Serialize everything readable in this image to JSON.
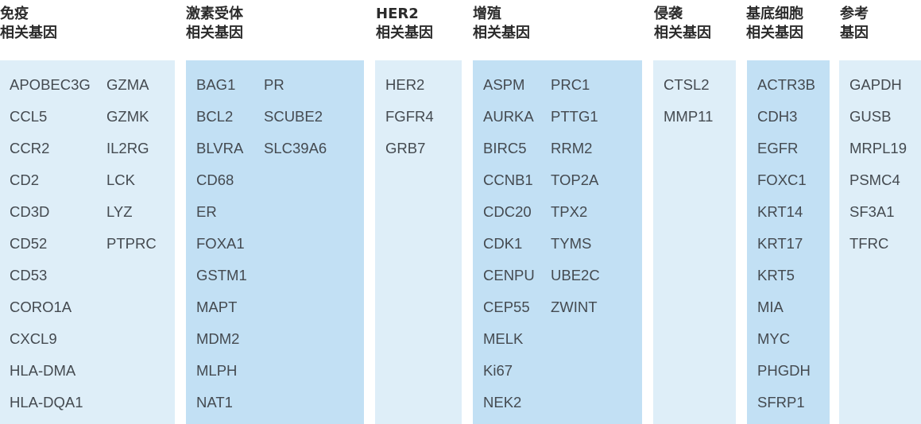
{
  "columns": [
    {
      "id": "immune",
      "header": [
        "免疫",
        "相关基因"
      ],
      "subcols": [
        [
          "APOBEC3G",
          "CCL5",
          "CCR2",
          "CD2",
          "CD3D",
          "CD52",
          "CD53",
          "CORO1A",
          "CXCL9",
          "HLA-DMA",
          "HLA-DQA1"
        ],
        [
          "GZMA",
          "GZMK",
          "IL2RG",
          "LCK",
          "LYZ",
          "PTPRC"
        ]
      ],
      "shade": "light"
    },
    {
      "id": "hormone",
      "header": [
        "激素受体",
        "相关基因"
      ],
      "subcols": [
        [
          "BAG1",
          "BCL2",
          "BLVRA",
          "CD68",
          "ER",
          "FOXA1",
          "GSTM1",
          "MAPT",
          "MDM2",
          "MLPH",
          "NAT1"
        ],
        [
          "PR",
          "SCUBE2",
          "SLC39A6"
        ]
      ],
      "shade": "dark"
    },
    {
      "id": "her2",
      "header": [
        "HER2",
        "相关基因"
      ],
      "subcols": [
        [
          "HER2",
          "FGFR4",
          "GRB7"
        ]
      ],
      "shade": "light"
    },
    {
      "id": "proliferation",
      "header": [
        "增殖",
        "相关基因"
      ],
      "subcols": [
        [
          "ASPM",
          "AURKA",
          "BIRC5",
          "CCNB1",
          "CDC20",
          "CDK1",
          "CENPU",
          "CEP55",
          "MELK",
          "Ki67",
          "NEK2"
        ],
        [
          "PRC1",
          "PTTG1",
          "RRM2",
          "TOP2A",
          "TPX2",
          "TYMS",
          "UBE2C",
          "ZWINT"
        ]
      ],
      "shade": "dark"
    },
    {
      "id": "invasion",
      "header": [
        "侵袭",
        "相关基因"
      ],
      "subcols": [
        [
          "CTSL2",
          "MMP11"
        ]
      ],
      "shade": "light"
    },
    {
      "id": "basal",
      "header": [
        "基底细胞",
        "相关基因"
      ],
      "subcols": [
        [
          "ACTR3B",
          "CDH3",
          "EGFR",
          "FOXC1",
          "KRT14",
          "KRT17",
          "KRT5",
          "MIA",
          "MYC",
          "PHGDH",
          "SFRP1"
        ]
      ],
      "shade": "dark"
    },
    {
      "id": "reference",
      "header": [
        "参考",
        "基因"
      ],
      "subcols": [
        [
          "GAPDH",
          "GUSB",
          "MRPL19",
          "PSMC4",
          "SF3A1",
          "TFRC"
        ]
      ],
      "shade": "light"
    }
  ],
  "colors": {
    "light": "#deeef8",
    "dark": "#c2e0f4",
    "text": "#444a50",
    "header": "#2b2b2b"
  }
}
